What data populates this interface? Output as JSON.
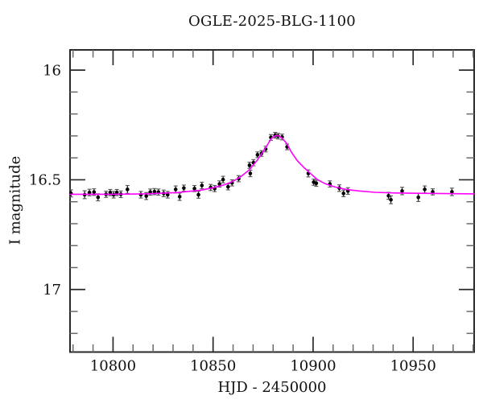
{
  "chart_data": {
    "type": "scatter",
    "title": "OGLE-2025-BLG-1100",
    "xlabel": "HJD - 2450000",
    "ylabel": "I magnitude",
    "xlim": [
      10778.5,
      10980.5
    ],
    "ylim": [
      15.908,
      17.285
    ],
    "y_axis_inverted": true,
    "grid": false,
    "legend": "none",
    "x_major_ticks": [
      {
        "value": 10800,
        "label": "10800"
      },
      {
        "value": 10850,
        "label": "10850"
      },
      {
        "value": 10900,
        "label": "10900"
      },
      {
        "value": 10950,
        "label": "10950"
      }
    ],
    "x_minor_step": 10,
    "y_major_ticks": [
      {
        "value": 16,
        "label": "16"
      },
      {
        "value": 16.5,
        "label": "16.5"
      },
      {
        "value": 17,
        "label": "17"
      }
    ],
    "y_minor_step": 0.1,
    "point_format": [
      "hjd",
      "mag",
      "err"
    ],
    "series": [
      {
        "name": "OGLE I-band photometry",
        "kind": "scatter-errorbars",
        "color": "#000000",
        "points": [
          [
            10779.0,
            16.562,
            0.016
          ],
          [
            10785.8,
            16.568,
            0.018
          ],
          [
            10788.2,
            16.558,
            0.015
          ],
          [
            10790.5,
            16.556,
            0.015
          ],
          [
            10792.5,
            16.58,
            0.016
          ],
          [
            10796.5,
            16.566,
            0.014
          ],
          [
            10798.6,
            16.558,
            0.014
          ],
          [
            10800.3,
            16.568,
            0.015
          ],
          [
            10801.9,
            16.558,
            0.014
          ],
          [
            10803.9,
            16.566,
            0.015
          ],
          [
            10807.2,
            16.544,
            0.018
          ],
          [
            10813.9,
            16.568,
            0.015
          ],
          [
            10816.6,
            16.574,
            0.016
          ],
          [
            10818.6,
            16.556,
            0.014
          ],
          [
            10820.7,
            16.554,
            0.014
          ],
          [
            10822.7,
            16.556,
            0.014
          ],
          [
            10825.3,
            16.562,
            0.015
          ],
          [
            10827.3,
            16.568,
            0.015
          ],
          [
            10831.3,
            16.544,
            0.016
          ],
          [
            10833.3,
            16.577,
            0.017
          ],
          [
            10835.4,
            16.538,
            0.014
          ],
          [
            10840.7,
            16.54,
            0.014
          ],
          [
            10842.7,
            16.568,
            0.016
          ],
          [
            10844.4,
            16.526,
            0.015
          ],
          [
            10848.8,
            16.535,
            0.014
          ],
          [
            10850.8,
            16.54,
            0.014
          ],
          [
            10853.2,
            16.519,
            0.014
          ],
          [
            10855.0,
            16.499,
            0.015
          ],
          [
            10857.5,
            16.532,
            0.014
          ],
          [
            10859.5,
            16.514,
            0.014
          ],
          [
            10862.8,
            16.495,
            0.014
          ],
          [
            10868.2,
            16.434,
            0.014
          ],
          [
            10868.6,
            16.471,
            0.015
          ],
          [
            10870.2,
            16.422,
            0.014
          ],
          [
            10872.2,
            16.386,
            0.013
          ],
          [
            10874.2,
            16.38,
            0.013
          ],
          [
            10876.3,
            16.36,
            0.013
          ],
          [
            10878.9,
            16.307,
            0.013
          ],
          [
            10881.0,
            16.297,
            0.013
          ],
          [
            10882.5,
            16.301,
            0.013
          ],
          [
            10884.5,
            16.305,
            0.013
          ],
          [
            10887.0,
            16.35,
            0.013
          ],
          [
            10897.6,
            16.471,
            0.016
          ],
          [
            10900.3,
            16.511,
            0.014
          ],
          [
            10901.6,
            16.516,
            0.014
          ],
          [
            10908.4,
            16.519,
            0.014
          ],
          [
            10913.1,
            16.538,
            0.015
          ],
          [
            10915.2,
            16.562,
            0.015
          ],
          [
            10917.4,
            16.551,
            0.015
          ],
          [
            10937.7,
            16.573,
            0.016
          ],
          [
            10938.9,
            16.591,
            0.018
          ],
          [
            10944.5,
            16.551,
            0.017
          ],
          [
            10952.6,
            16.58,
            0.019
          ],
          [
            10955.8,
            16.544,
            0.016
          ],
          [
            10959.8,
            16.555,
            0.014
          ],
          [
            10969.4,
            16.555,
            0.017
          ]
        ]
      },
      {
        "name": "microlensing model fit",
        "kind": "line",
        "color": "#ff00ff",
        "points": [
          [
            10778.5,
            16.566
          ],
          [
            10800.0,
            16.566
          ],
          [
            10816.0,
            16.564
          ],
          [
            10832.0,
            16.558
          ],
          [
            10844.0,
            16.547
          ],
          [
            10850.0,
            16.536
          ],
          [
            10856.0,
            16.522
          ],
          [
            10860.0,
            16.507
          ],
          [
            10864.0,
            16.485
          ],
          [
            10868.0,
            16.456
          ],
          [
            10872.0,
            16.412
          ],
          [
            10875.5,
            16.365
          ],
          [
            10878.0,
            16.328
          ],
          [
            10879.5,
            16.308
          ],
          [
            10881.3,
            16.298
          ],
          [
            10883.0,
            16.301
          ],
          [
            10884.5,
            16.31
          ],
          [
            10887.0,
            16.336
          ],
          [
            10889.0,
            16.372
          ],
          [
            10892.0,
            16.412
          ],
          [
            10895.5,
            16.445
          ],
          [
            10899.0,
            16.474
          ],
          [
            10902.0,
            16.498
          ],
          [
            10906.0,
            16.518
          ],
          [
            10911.0,
            16.533
          ],
          [
            10916.5,
            16.544
          ],
          [
            10923.0,
            16.551
          ],
          [
            10931.0,
            16.557
          ],
          [
            10941.0,
            16.56
          ],
          [
            10957.0,
            16.562
          ],
          [
            10980.5,
            16.564
          ]
        ]
      }
    ],
    "colors": {
      "background": "#ffffff",
      "frame": "#2a2a2a",
      "major_tick": "#2a2a2a",
      "minor_tick": "#6a6a6a",
      "data_points": "#000000",
      "error_bar": "#222222",
      "error_cap": "#555555",
      "model_curve": "#ff00ff",
      "text": "#111111"
    }
  }
}
